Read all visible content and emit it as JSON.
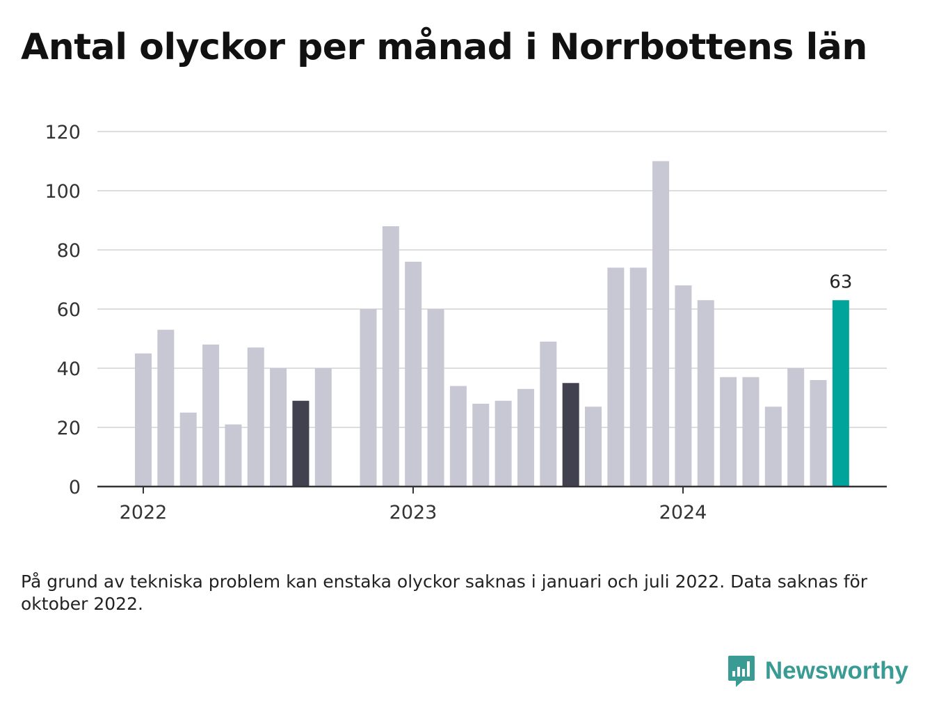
{
  "title": "Antal olyckor per månad i Norrbottens län",
  "footnote": "På grund av tekniska problem kan enstaka olyckor saknas i januari och juli 2022. Data saknas för oktober 2022.",
  "brand": {
    "name": "Newsworthy",
    "logo_icon": "bar-chart-speech-bubble-icon"
  },
  "chart_data": {
    "type": "bar",
    "title": "Antal olyckor per månad i Norrbottens län",
    "xlabel": "",
    "ylabel": "",
    "ylim": [
      0,
      120
    ],
    "yticks": [
      0,
      20,
      40,
      60,
      80,
      100,
      120
    ],
    "xtick_labels": [
      "2022",
      "2023",
      "2024"
    ],
    "grid": true,
    "categories": [
      "2022-01",
      "2022-02",
      "2022-03",
      "2022-04",
      "2022-05",
      "2022-06",
      "2022-07",
      "2022-08",
      "2022-09",
      "2022-10",
      "2022-11",
      "2022-12",
      "2023-01",
      "2023-02",
      "2023-03",
      "2023-04",
      "2023-05",
      "2023-06",
      "2023-07",
      "2023-08",
      "2023-09",
      "2023-10",
      "2023-11",
      "2023-12",
      "2024-01",
      "2024-02",
      "2024-03",
      "2024-04",
      "2024-05",
      "2024-06",
      "2024-07",
      "2024-08"
    ],
    "values": [
      45,
      53,
      25,
      48,
      21,
      47,
      40,
      29,
      40,
      null,
      60,
      88,
      76,
      60,
      34,
      28,
      29,
      33,
      49,
      35,
      27,
      74,
      74,
      110,
      68,
      63,
      37,
      37,
      27,
      40,
      36,
      63
    ],
    "highlight_label": "63",
    "colors": {
      "default": "#c8c7d4",
      "highlight_dark": "#42414f",
      "highlight_latest": "#00a49a",
      "grid": "#dddddd",
      "axis": "#333333"
    },
    "dark_indices": [
      7,
      19
    ],
    "latest_index": 31
  }
}
